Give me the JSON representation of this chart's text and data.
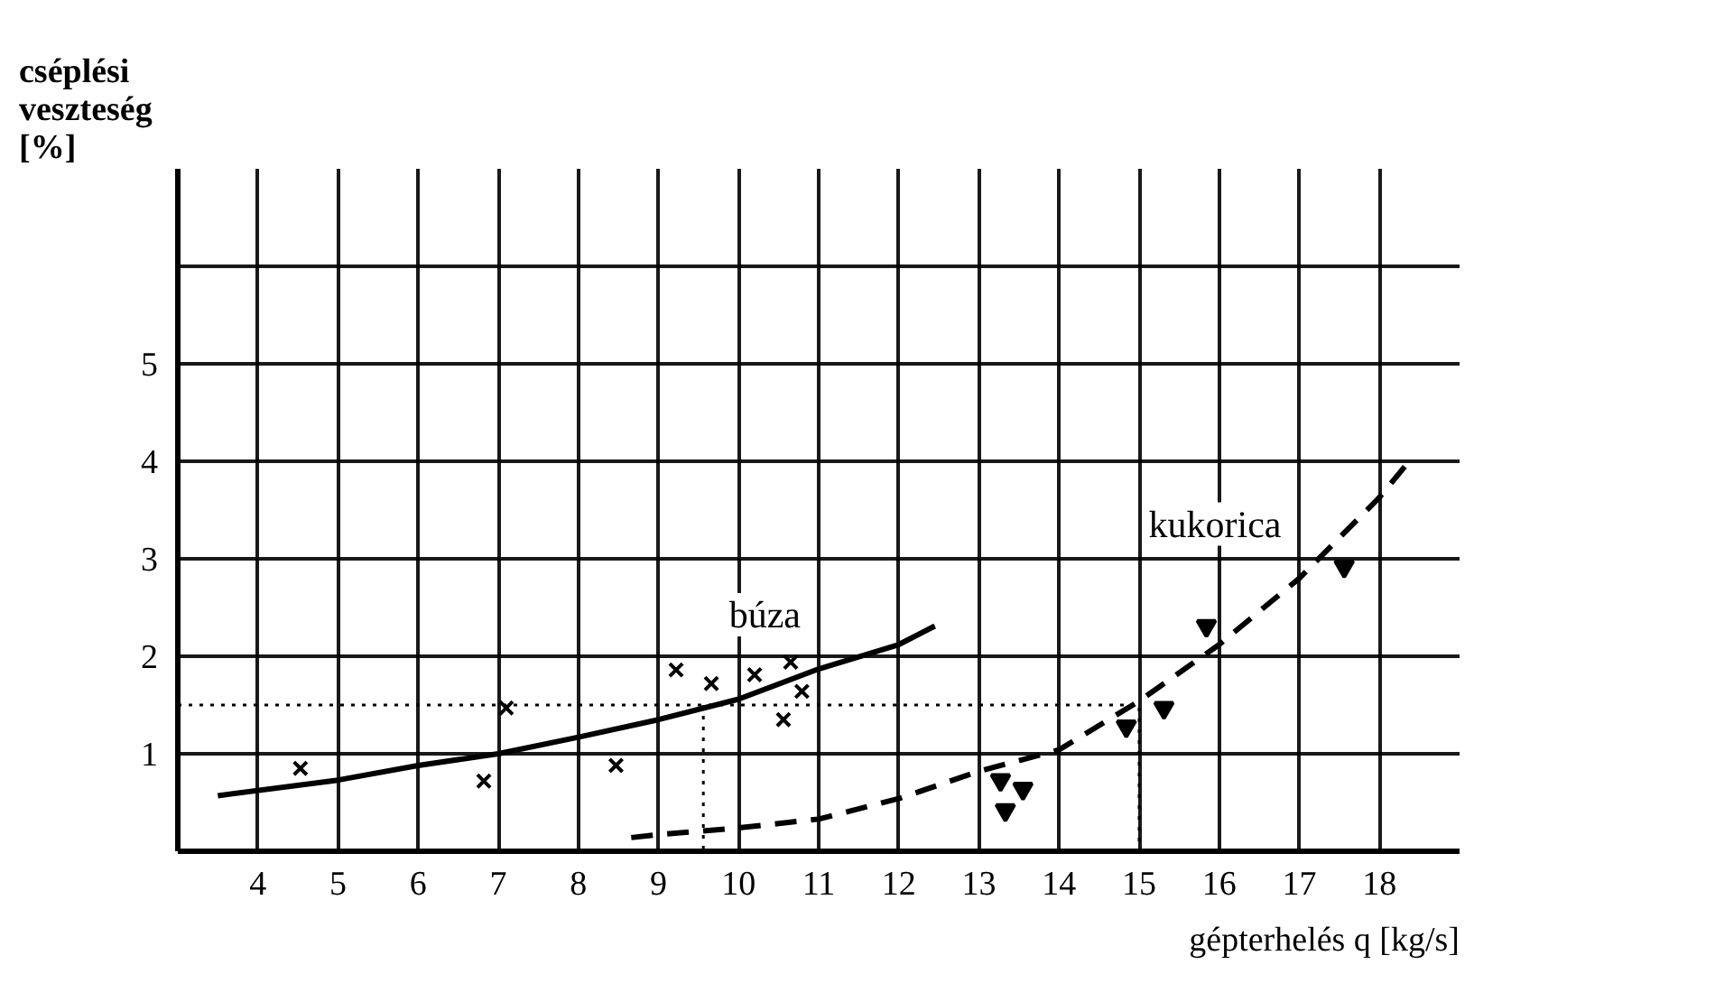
{
  "chart_data": {
    "type": "line",
    "xlabel": "gépterhelés q [kg/s]",
    "ylabel": "cséplési veszteség [%]",
    "xlim": [
      3,
      19
    ],
    "xticks": [
      4,
      5,
      6,
      7,
      8,
      9,
      10,
      11,
      12,
      13,
      14,
      15,
      16,
      17,
      18
    ],
    "ylim": [
      0,
      7
    ],
    "yticks": [
      1,
      2,
      3,
      4,
      5,
      {
        "value": 6,
        "label": null
      }
    ],
    "grid": true,
    "series": [
      {
        "name": "búza",
        "color": "#000000",
        "line_style": "solid",
        "x": [
          3.5,
          5,
          6,
          7,
          8,
          9,
          10,
          11,
          12,
          12.45
        ],
        "values": [
          0.57,
          0.73,
          0.88,
          1.0,
          1.17,
          1.35,
          1.56,
          1.87,
          2.12,
          2.31
        ]
      },
      {
        "type": "scatter",
        "marker": "cross",
        "color": "#000000",
        "x": [
          4.53,
          6.82,
          7.1,
          8.47,
          9.22,
          9.66,
          10.2,
          10.65,
          10.79,
          10.56
        ],
        "values": [
          0.85,
          0.72,
          1.47,
          0.88,
          1.86,
          1.72,
          1.81,
          1.94,
          1.64,
          1.35
        ]
      },
      {
        "name": "kukorica",
        "color": "#000000",
        "line_style": "dashed",
        "x": [
          8.66,
          9,
          10,
          11,
          12,
          13,
          14,
          15,
          16,
          17,
          18,
          18.34
        ],
        "values": [
          0.14,
          0.17,
          0.24,
          0.33,
          0.54,
          0.82,
          1.04,
          1.54,
          2.12,
          2.8,
          3.63,
          3.97
        ]
      },
      {
        "type": "scatter",
        "marker": "triangle",
        "color": "#000000",
        "x": [
          13.27,
          13.55,
          13.33,
          14.84,
          15.31,
          15.84,
          17.56
        ],
        "values": [
          0.73,
          0.64,
          0.42,
          1.28,
          1.47,
          2.31,
          2.92
        ]
      },
      {
        "color": "#000000",
        "line_style": "dotted",
        "x": [
          3,
          15,
          15
        ],
        "values": [
          1.5,
          1.5,
          0
        ]
      },
      {
        "color": "#000000",
        "line_style": "dotted",
        "x": [
          9.56,
          9.56
        ],
        "values": [
          1.5,
          0
        ]
      }
    ]
  }
}
